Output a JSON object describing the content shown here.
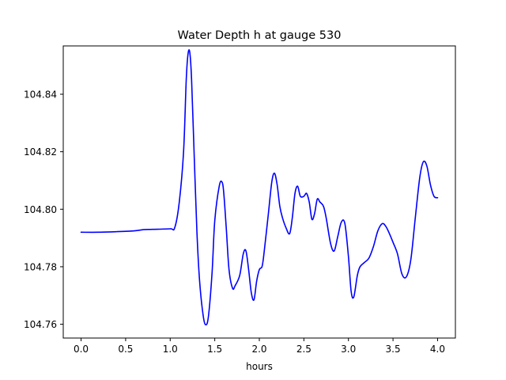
{
  "chart_data": {
    "type": "line",
    "title": "Water Depth h at gauge 530",
    "xlabel": "hours",
    "ylabel": "",
    "xlim": [
      -0.2,
      4.2
    ],
    "ylim": [
      104.7552,
      104.8568
    ],
    "xticks": [
      0.0,
      0.5,
      1.0,
      1.5,
      2.0,
      2.5,
      3.0,
      3.5,
      4.0
    ],
    "xtick_labels": [
      "0.0",
      "0.5",
      "1.0",
      "1.5",
      "2.0",
      "2.5",
      "3.0",
      "3.5",
      "4.0"
    ],
    "yticks": [
      104.76,
      104.78,
      104.8,
      104.82,
      104.84
    ],
    "ytick_labels": [
      "104.76",
      "104.78",
      "104.80",
      "104.82",
      "104.84"
    ],
    "grid": false,
    "series": [
      {
        "color": "#0000ff",
        "x": [
          0.0,
          0.2,
          0.4,
          0.6,
          0.7,
          0.8,
          1.0,
          1.05,
          1.1,
          1.15,
          1.18,
          1.2,
          1.22,
          1.24,
          1.27,
          1.3,
          1.33,
          1.37,
          1.4,
          1.43,
          1.47,
          1.5,
          1.55,
          1.58,
          1.6,
          1.63,
          1.66,
          1.7,
          1.73,
          1.78,
          1.82,
          1.85,
          1.88,
          1.91,
          1.94,
          1.97,
          2.0,
          2.03,
          2.05,
          2.1,
          2.14,
          2.17,
          2.2,
          2.23,
          2.26,
          2.3,
          2.34,
          2.37,
          2.4,
          2.43,
          2.46,
          2.5,
          2.53,
          2.56,
          2.59,
          2.62,
          2.65,
          2.68,
          2.72,
          2.75,
          2.8,
          2.84,
          2.88,
          2.92,
          2.96,
          3.0,
          3.03,
          3.06,
          3.1,
          3.13,
          3.18,
          3.23,
          3.28,
          3.33,
          3.38,
          3.42,
          3.46,
          3.5,
          3.55,
          3.6,
          3.65,
          3.7,
          3.75,
          3.8,
          3.84,
          3.88,
          3.92,
          3.96,
          4.0
        ],
        "y": [
          104.792,
          104.792,
          104.7922,
          104.7925,
          104.7929,
          104.793,
          104.7932,
          104.7935,
          104.802,
          104.82,
          104.845,
          104.854,
          104.8545,
          104.845,
          104.818,
          104.792,
          104.775,
          104.763,
          104.7598,
          104.763,
          104.778,
          104.796,
          104.808,
          104.8095,
          104.806,
          104.793,
          104.779,
          104.7725,
          104.7735,
          104.777,
          104.7845,
          104.7855,
          104.779,
          104.771,
          104.7685,
          104.775,
          104.779,
          104.78,
          104.784,
          104.798,
          104.8095,
          104.8125,
          104.8085,
          104.801,
          104.797,
          104.7935,
          104.7915,
          104.797,
          104.8055,
          104.808,
          104.8045,
          104.8045,
          104.8055,
          104.8025,
          104.7965,
          104.7985,
          104.8035,
          104.8025,
          104.801,
          104.797,
          104.788,
          104.7855,
          104.7905,
          104.7955,
          104.795,
          104.7835,
          104.7715,
          104.7695,
          104.777,
          104.78,
          104.7815,
          104.783,
          104.787,
          104.7925,
          104.795,
          104.794,
          104.7915,
          104.7885,
          104.7845,
          104.7775,
          104.7765,
          104.7825,
          104.797,
          104.811,
          104.8165,
          104.815,
          104.8085,
          104.8045,
          104.804
        ]
      }
    ]
  }
}
